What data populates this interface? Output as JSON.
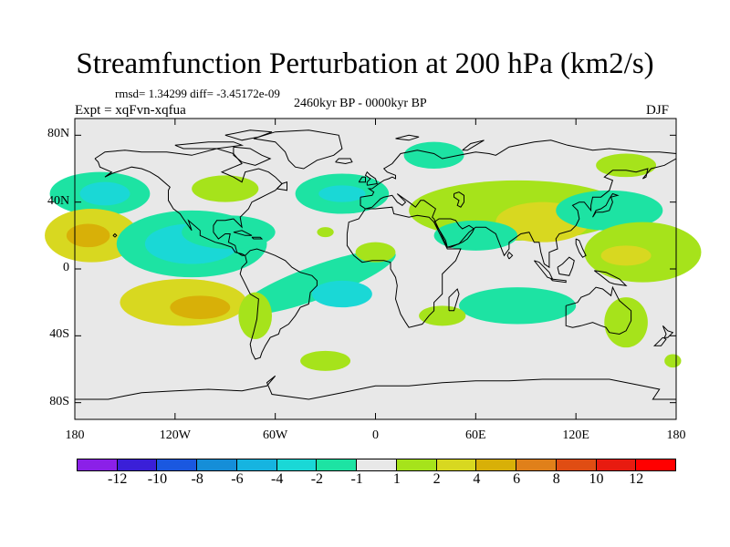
{
  "title": "Streamfunction Perturbation at 200 hPa (km2/s)",
  "stats": "rmsd= 1.34299  diff= -3.45172e-09",
  "period": "2460kyr BP - 0000kyr BP",
  "expt": "Expt = xqFvn-xqfua",
  "season": "DJF",
  "map": {
    "projection": "cylindrical equidistant",
    "lon_range": [
      -180,
      180
    ],
    "lat_range": [
      -90,
      90
    ],
    "lat_ticks": [
      {
        "value": 80,
        "label": "80N"
      },
      {
        "value": 40,
        "label": "40N"
      },
      {
        "value": 0,
        "label": "0"
      },
      {
        "value": -40,
        "label": "40S"
      },
      {
        "value": -80,
        "label": "80S"
      }
    ],
    "lon_ticks": [
      {
        "value": -180,
        "label": "180"
      },
      {
        "value": -120,
        "label": "120W"
      },
      {
        "value": -60,
        "label": "60W"
      },
      {
        "value": 0,
        "label": "0"
      },
      {
        "value": 60,
        "label": "60E"
      },
      {
        "value": 120,
        "label": "120E"
      },
      {
        "value": 180,
        "label": "180"
      }
    ],
    "background_color": "#e8e8e8",
    "anomalies": [
      {
        "lon": -165,
        "lat": 45,
        "rlon": 30,
        "rlat": 13,
        "rot": 0,
        "level": -1
      },
      {
        "lon": -162,
        "lat": 45,
        "rlon": 15,
        "rlat": 7,
        "rot": 0,
        "level": -2
      },
      {
        "lon": -170,
        "lat": 20,
        "rlon": 28,
        "rlat": 16,
        "rot": 0,
        "level": 2
      },
      {
        "lon": -172,
        "lat": 20,
        "rlon": 13,
        "rlat": 7,
        "rot": 0,
        "level": 4
      },
      {
        "lon": -110,
        "lat": 15,
        "rlon": 45,
        "rlat": 20,
        "rot": 0,
        "level": -1
      },
      {
        "lon": -110,
        "lat": 15,
        "rlon": 28,
        "rlat": 12,
        "rot": 0,
        "level": -2
      },
      {
        "lon": -88,
        "lat": 22,
        "rlon": 28,
        "rlat": 10,
        "rot": 0,
        "level": -1
      },
      {
        "lon": -35,
        "lat": -8,
        "rlon": 50,
        "rlat": 10,
        "rot": -20,
        "level": -1
      },
      {
        "lon": -20,
        "lat": -15,
        "rlon": 18,
        "rlat": 8,
        "rot": 0,
        "level": -2
      },
      {
        "lon": -115,
        "lat": -20,
        "rlon": 38,
        "rlat": 14,
        "rot": 0,
        "level": 2
      },
      {
        "lon": -105,
        "lat": -23,
        "rlon": 18,
        "rlat": 7,
        "rot": 0,
        "level": 4
      },
      {
        "lon": -72,
        "lat": -28,
        "rlon": 10,
        "rlat": 14,
        "rot": 0,
        "level": 1
      },
      {
        "lon": -90,
        "lat": 48,
        "rlon": 20,
        "rlat": 8,
        "rot": 0,
        "level": 1
      },
      {
        "lon": -20,
        "lat": 45,
        "rlon": 28,
        "rlat": 12,
        "rot": 0,
        "level": -1
      },
      {
        "lon": -20,
        "lat": 45,
        "rlon": 14,
        "rlat": 5,
        "rot": 0,
        "level": -2
      },
      {
        "lon": 35,
        "lat": 68,
        "rlon": 18,
        "rlat": 8,
        "rot": 0,
        "level": -1
      },
      {
        "lon": 85,
        "lat": 35,
        "rlon": 65,
        "rlat": 18,
        "rot": 0,
        "level": 1
      },
      {
        "lon": 100,
        "lat": 28,
        "rlon": 28,
        "rlat": 12,
        "rot": 0,
        "level": 2
      },
      {
        "lon": 60,
        "lat": 20,
        "rlon": 25,
        "rlat": 9,
        "rot": 0,
        "level": -1
      },
      {
        "lon": 140,
        "lat": 35,
        "rlon": 32,
        "rlat": 12,
        "rot": 0,
        "level": -1
      },
      {
        "lon": 150,
        "lat": 62,
        "rlon": 18,
        "rlat": 7,
        "rot": 0,
        "level": 1
      },
      {
        "lon": 160,
        "lat": 10,
        "rlon": 35,
        "rlat": 18,
        "rot": 0,
        "level": 1
      },
      {
        "lon": 150,
        "lat": 8,
        "rlon": 15,
        "rlat": 6,
        "rot": 0,
        "level": 2
      },
      {
        "lon": 85,
        "lat": -22,
        "rlon": 35,
        "rlat": 11,
        "rot": 0,
        "level": -1
      },
      {
        "lon": 150,
        "lat": -32,
        "rlon": 13,
        "rlat": 15,
        "rot": 0,
        "level": 1
      },
      {
        "lon": 40,
        "lat": -28,
        "rlon": 14,
        "rlat": 6,
        "rot": 0,
        "level": 1
      },
      {
        "lon": 0,
        "lat": 10,
        "rlon": 12,
        "rlat": 6,
        "rot": 0,
        "level": 1
      },
      {
        "lon": -30,
        "lat": 22,
        "rlon": 5,
        "rlat": 3,
        "rot": 0,
        "level": 1
      },
      {
        "lon": -30,
        "lat": -55,
        "rlon": 15,
        "rlat": 6,
        "rot": 0,
        "level": 1
      },
      {
        "lon": 178,
        "lat": -55,
        "rlon": 5,
        "rlat": 4,
        "rot": 0,
        "level": 1
      }
    ]
  },
  "colorbar": {
    "levels": [
      -12,
      -10,
      -8,
      -6,
      -4,
      -2,
      -1,
      1,
      2,
      4,
      6,
      8,
      10,
      12
    ],
    "labels": [
      "-12",
      "-10",
      "-8",
      "-6",
      "-4",
      "-2",
      "-1",
      "1",
      "2",
      "4",
      "6",
      "8",
      "10",
      "12"
    ],
    "colors": [
      "#8b20e8",
      "#3a1fd8",
      "#1a58e0",
      "#158ed8",
      "#16b4e0",
      "#1ad8d6",
      "#1de3a3",
      "#e8e8e8",
      "#a6e31b",
      "#d8d820",
      "#d8b008",
      "#e0801a",
      "#e04d13",
      "#e81b10",
      "#ff0000"
    ]
  }
}
